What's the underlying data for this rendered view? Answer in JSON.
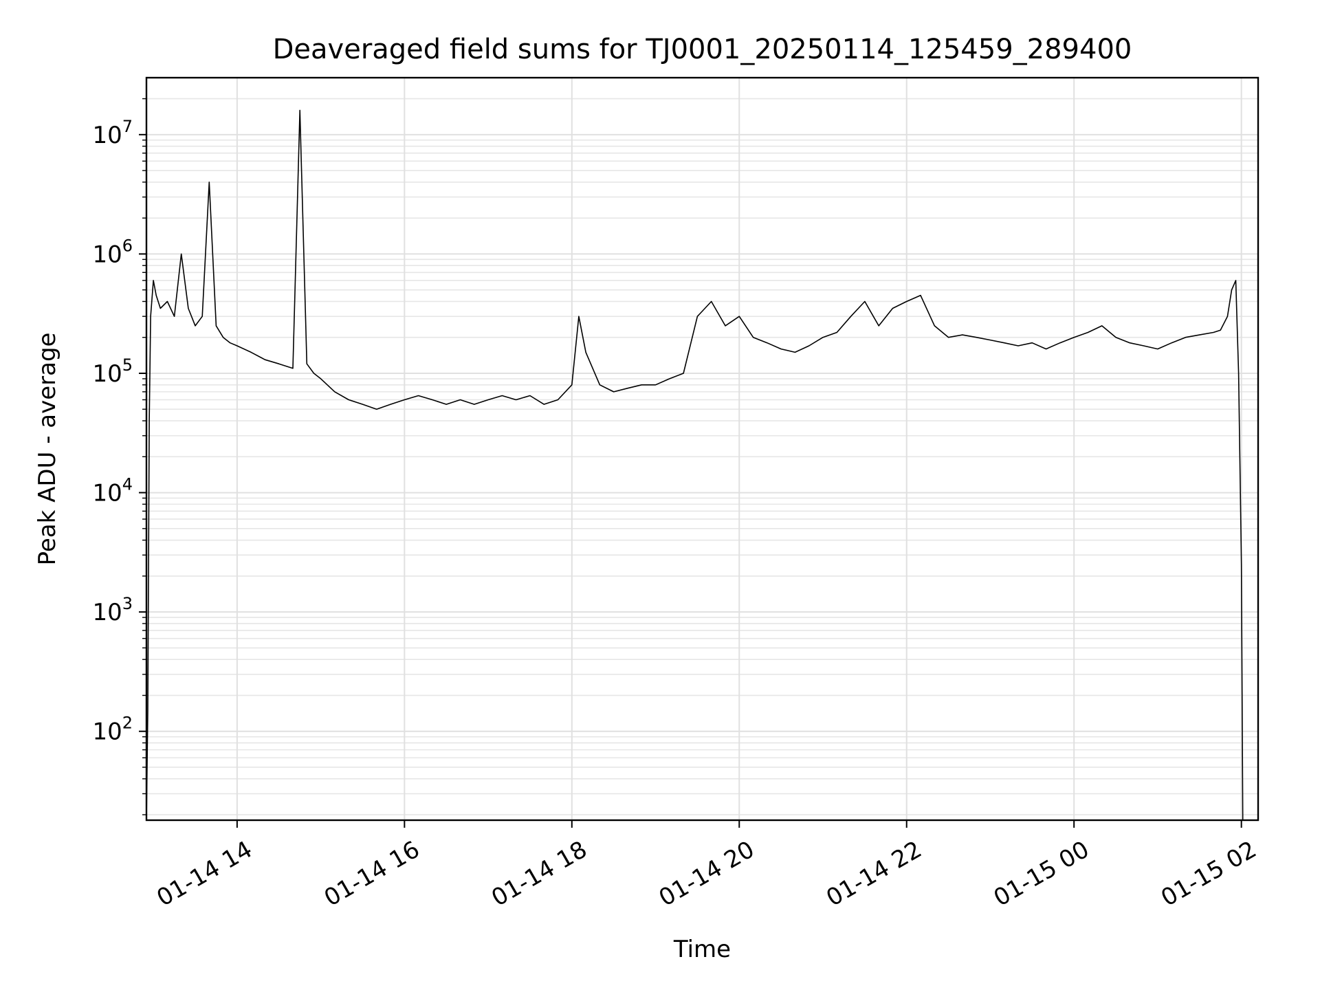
{
  "chart_data": {
    "type": "line",
    "title": "Deaveraged field sums for TJ0001_20250114_125459_289400",
    "xlabel": "Time",
    "ylabel": "Peak ADU - average",
    "yscale": "log",
    "ylim": [
      18,
      30000000
    ],
    "xlim": [
      "2025-01-14 12:55",
      "2025-01-15 02:12"
    ],
    "grid": true,
    "line_color": "#000000",
    "x_ticks": [
      {
        "value": "2025-01-14 14:00",
        "label": "01-14 14"
      },
      {
        "value": "2025-01-14 16:00",
        "label": "01-14 16"
      },
      {
        "value": "2025-01-14 18:00",
        "label": "01-14 18"
      },
      {
        "value": "2025-01-14 20:00",
        "label": "01-14 20"
      },
      {
        "value": "2025-01-14 22:00",
        "label": "01-14 22"
      },
      {
        "value": "2025-01-15 00:00",
        "label": "01-15 00"
      },
      {
        "value": "2025-01-15 02:00",
        "label": "01-15 02"
      }
    ],
    "y_ticks": [
      {
        "value": 100,
        "base": "10",
        "exp": "2"
      },
      {
        "value": 1000,
        "base": "10",
        "exp": "3"
      },
      {
        "value": 10000,
        "base": "10",
        "exp": "4"
      },
      {
        "value": 100000,
        "base": "10",
        "exp": "5"
      },
      {
        "value": 1000000,
        "base": "10",
        "exp": "6"
      },
      {
        "value": 10000000,
        "base": "10",
        "exp": "7"
      }
    ],
    "series": [
      {
        "x": [
          "2025-01-14 12:55",
          "2025-01-14 12:56",
          "2025-01-14 12:57",
          "2025-01-14 12:58",
          "2025-01-14 13:00",
          "2025-01-14 13:02",
          "2025-01-14 13:05",
          "2025-01-14 13:10",
          "2025-01-14 13:15",
          "2025-01-14 13:20",
          "2025-01-14 13:25",
          "2025-01-14 13:30",
          "2025-01-14 13:35",
          "2025-01-14 13:40",
          "2025-01-14 13:45",
          "2025-01-14 13:50",
          "2025-01-14 13:55",
          "2025-01-14 14:00",
          "2025-01-14 14:10",
          "2025-01-14 14:20",
          "2025-01-14 14:30",
          "2025-01-14 14:40",
          "2025-01-14 14:45",
          "2025-01-14 14:50",
          "2025-01-14 14:55",
          "2025-01-14 15:00",
          "2025-01-14 15:10",
          "2025-01-14 15:20",
          "2025-01-14 15:30",
          "2025-01-14 15:40",
          "2025-01-14 15:50",
          "2025-01-14 16:00",
          "2025-01-14 16:10",
          "2025-01-14 16:20",
          "2025-01-14 16:30",
          "2025-01-14 16:40",
          "2025-01-14 16:50",
          "2025-01-14 17:00",
          "2025-01-14 17:10",
          "2025-01-14 17:20",
          "2025-01-14 17:30",
          "2025-01-14 17:40",
          "2025-01-14 17:50",
          "2025-01-14 18:00",
          "2025-01-14 18:05",
          "2025-01-14 18:10",
          "2025-01-14 18:20",
          "2025-01-14 18:30",
          "2025-01-14 18:40",
          "2025-01-14 18:50",
          "2025-01-14 19:00",
          "2025-01-14 19:10",
          "2025-01-14 19:20",
          "2025-01-14 19:30",
          "2025-01-14 19:40",
          "2025-01-14 19:50",
          "2025-01-14 20:00",
          "2025-01-14 20:10",
          "2025-01-14 20:20",
          "2025-01-14 20:30",
          "2025-01-14 20:40",
          "2025-01-14 20:50",
          "2025-01-14 21:00",
          "2025-01-14 21:10",
          "2025-01-14 21:20",
          "2025-01-14 21:30",
          "2025-01-14 21:40",
          "2025-01-14 21:50",
          "2025-01-14 22:00",
          "2025-01-14 22:10",
          "2025-01-14 22:20",
          "2025-01-14 22:30",
          "2025-01-14 22:40",
          "2025-01-14 22:50",
          "2025-01-14 23:00",
          "2025-01-14 23:10",
          "2025-01-14 23:20",
          "2025-01-14 23:30",
          "2025-01-14 23:40",
          "2025-01-14 23:50",
          "2025-01-15 00:00",
          "2025-01-15 00:10",
          "2025-01-15 00:20",
          "2025-01-15 00:30",
          "2025-01-15 00:40",
          "2025-01-15 00:50",
          "2025-01-15 01:00",
          "2025-01-15 01:10",
          "2025-01-15 01:20",
          "2025-01-15 01:30",
          "2025-01-15 01:40",
          "2025-01-15 01:45",
          "2025-01-15 01:50",
          "2025-01-15 01:53",
          "2025-01-15 01:56",
          "2025-01-15 01:58",
          "2025-01-15 02:00",
          "2025-01-15 02:01"
        ],
        "y": [
          18,
          150,
          40000,
          300000,
          600000,
          450000,
          350000,
          400000,
          300000,
          1000000,
          350000,
          250000,
          300000,
          4000000,
          250000,
          200000,
          180000,
          170000,
          150000,
          130000,
          120000,
          110000,
          16000000,
          120000,
          100000,
          90000,
          70000,
          60000,
          55000,
          50000,
          55000,
          60000,
          65000,
          60000,
          55000,
          60000,
          55000,
          60000,
          65000,
          60000,
          65000,
          55000,
          60000,
          80000,
          300000,
          150000,
          80000,
          70000,
          75000,
          80000,
          80000,
          90000,
          100000,
          300000,
          400000,
          250000,
          300000,
          200000,
          180000,
          160000,
          150000,
          170000,
          200000,
          220000,
          300000,
          400000,
          250000,
          350000,
          400000,
          450000,
          250000,
          200000,
          210000,
          200000,
          190000,
          180000,
          170000,
          180000,
          160000,
          180000,
          200000,
          220000,
          250000,
          200000,
          180000,
          170000,
          160000,
          180000,
          200000,
          210000,
          220000,
          230000,
          300000,
          500000,
          600000,
          100000,
          2500,
          18
        ]
      }
    ]
  }
}
